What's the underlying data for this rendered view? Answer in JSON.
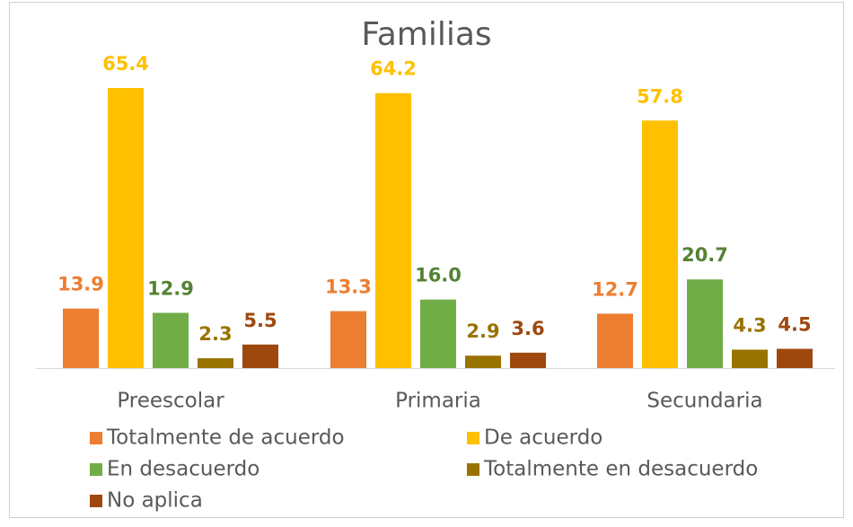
{
  "chart_data": {
    "type": "bar",
    "title": "Familias",
    "categories": [
      "Preescolar",
      "Primaria",
      "Secundaria"
    ],
    "series": [
      {
        "name": "Totalmente de acuerdo",
        "color": "#ed7d31",
        "values": [
          13.9,
          13.3,
          12.7
        ]
      },
      {
        "name": "De acuerdo",
        "color": "#ffc000",
        "values": [
          65.4,
          64.2,
          57.8
        ]
      },
      {
        "name": "En desacuerdo",
        "color": "#70ad47",
        "values": [
          12.9,
          16,
          20.7
        ],
        "value_labels": [
          "12.9",
          "16.0",
          "20.7"
        ]
      },
      {
        "name": "Totalmente en desacuerdo",
        "color": "#997300",
        "values": [
          2.3,
          2.9,
          4.3
        ]
      },
      {
        "name": "No aplica",
        "color": "#9e480e",
        "values": [
          5.5,
          3.6,
          4.5
        ]
      }
    ],
    "legend": "bottom"
  }
}
